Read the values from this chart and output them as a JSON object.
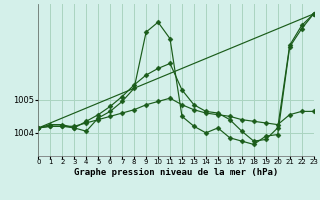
{
  "background_color": "#d4f0ea",
  "grid_color": "#aad4c0",
  "line_color": "#1a5c1a",
  "marker_color": "#1a5c1a",
  "xlabel": "Graphe pression niveau de la mer (hPa)",
  "xlim": [
    0,
    23
  ],
  "ylim": [
    1003.3,
    1007.9
  ],
  "yticks": [
    1004,
    1005
  ],
  "xticks": [
    0,
    1,
    2,
    3,
    4,
    5,
    6,
    7,
    8,
    9,
    10,
    11,
    12,
    13,
    14,
    15,
    16,
    17,
    18,
    19,
    20,
    21,
    22,
    23
  ],
  "series": [
    {
      "x": [
        0,
        1,
        2,
        3,
        4,
        5,
        6,
        7,
        8,
        9,
        10,
        11,
        12,
        13,
        14,
        15,
        16,
        17,
        18,
        19,
        20,
        21,
        22,
        23
      ],
      "y": [
        1004.15,
        1004.25,
        1004.25,
        1004.15,
        1004.05,
        1004.45,
        1004.65,
        1004.95,
        1005.35,
        1007.05,
        1007.35,
        1006.85,
        1004.5,
        1004.2,
        1004.0,
        1004.15,
        1003.85,
        1003.75,
        1003.65,
        1003.9,
        1003.95,
        1006.6,
        1007.15,
        1007.6
      ]
    },
    {
      "x": [
        0,
        23
      ],
      "y": [
        1004.15,
        1007.6
      ]
    },
    {
      "x": [
        0,
        1,
        2,
        3,
        4,
        5,
        6,
        7,
        8,
        9,
        10,
        11,
        12,
        13,
        14,
        15,
        16,
        17,
        18,
        19,
        20,
        21,
        22,
        23
      ],
      "y": [
        1004.15,
        1004.2,
        1004.2,
        1004.2,
        1004.3,
        1004.4,
        1004.5,
        1004.6,
        1004.7,
        1004.85,
        1004.95,
        1005.05,
        1004.85,
        1004.7,
        1004.6,
        1004.55,
        1004.5,
        1004.4,
        1004.35,
        1004.3,
        1004.25,
        1004.55,
        1004.65,
        1004.65
      ]
    },
    {
      "x": [
        0,
        1,
        2,
        3,
        4,
        5,
        6,
        7,
        8,
        9,
        10,
        11,
        12,
        13,
        14,
        15,
        16,
        17,
        18,
        19,
        20,
        21,
        22,
        23
      ],
      "y": [
        1004.15,
        1004.2,
        1004.2,
        1004.15,
        1004.35,
        1004.55,
        1004.8,
        1005.1,
        1005.45,
        1005.75,
        1005.95,
        1006.1,
        1005.3,
        1004.85,
        1004.65,
        1004.6,
        1004.4,
        1004.05,
        1003.75,
        1003.8,
        1004.15,
        1006.65,
        1007.25,
        1007.6
      ]
    }
  ]
}
